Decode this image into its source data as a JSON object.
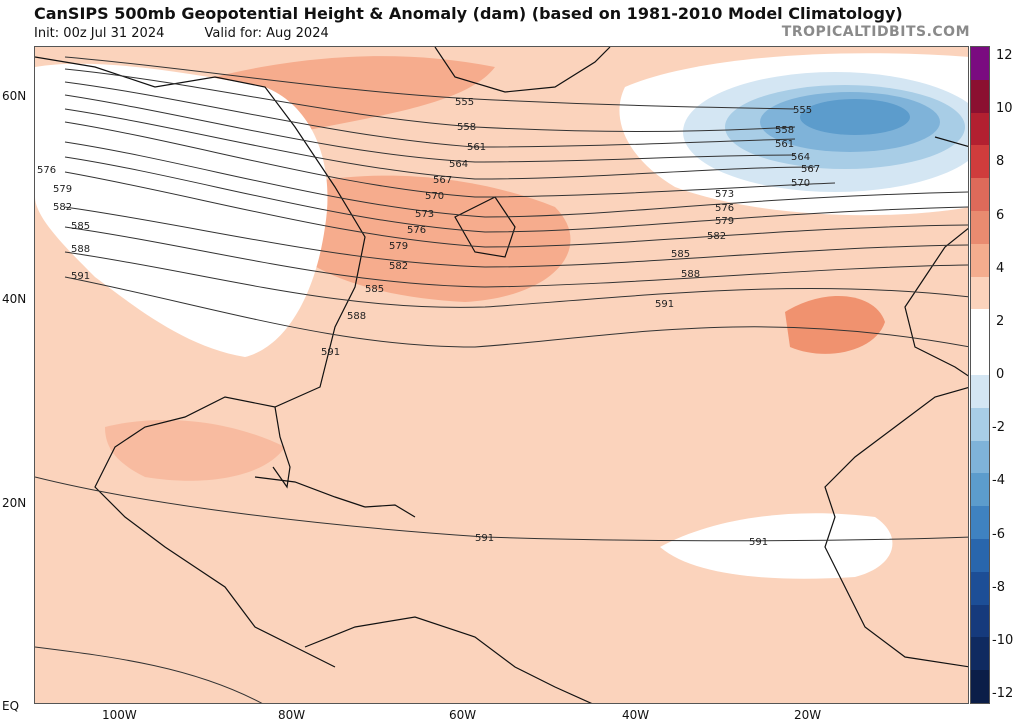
{
  "header": {
    "title": "CanSIPS 500mb Geopotential Height & Anomaly (dam) (based on 1981-2010 Model Climatology)",
    "init": "Init: 00z Jul 31 2024",
    "valid": "Valid for: Aug 2024",
    "brand": "TROPICALTIDBITS.COM"
  },
  "map": {
    "lat_labels": [
      "60N",
      "40N",
      "20N",
      "EQ"
    ],
    "lon_labels": [
      "100W",
      "80W",
      "60W",
      "40W",
      "20W"
    ],
    "contour_labels": [
      "555",
      "558",
      "561",
      "564",
      "567",
      "570",
      "573",
      "576",
      "579",
      "582",
      "585",
      "588",
      "591"
    ],
    "colors": {
      "land_fill": "#ffffff",
      "anom_pos_1": "#fbd3bc",
      "anom_pos_2": "#f6ac8d",
      "anom_pos_3": "#f0926f",
      "anom_neg_1": "#d4e6f3",
      "anom_neg_2": "#a8cde6",
      "anom_neg_3": "#7fb3d9",
      "anom_neg_4": "#5c9ccc",
      "contour": "#333333"
    }
  },
  "colorbar": {
    "labels": [
      "12",
      "10",
      "8",
      "6",
      "4",
      "2",
      "0",
      "-2",
      "-4",
      "-6",
      "-8",
      "-10",
      "-12"
    ],
    "colors": [
      "#7a0b80",
      "#8b1030",
      "#b22030",
      "#cf3c3c",
      "#de6a5a",
      "#e98b70",
      "#f4ad8e",
      "#fbd3bc",
      "#ffffff",
      "#ffffff",
      "#d4e6f3",
      "#a8cde6",
      "#7fb3d9",
      "#5c9ccc",
      "#3f82c0",
      "#2966ad",
      "#1d4e96",
      "#163a7c",
      "#0f2a60",
      "#0b1e48"
    ]
  }
}
